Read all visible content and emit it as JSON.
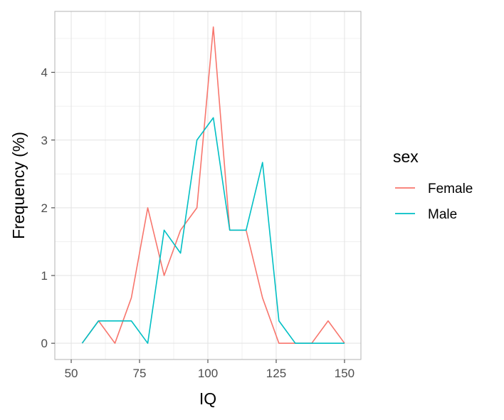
{
  "chart_data": {
    "type": "line",
    "xlabel": "IQ",
    "ylabel": "Frequency (%)",
    "xlim": [
      44,
      156
    ],
    "ylim": [
      -0.24,
      4.9
    ],
    "xticks": [
      50,
      75,
      100,
      125,
      150
    ],
    "yticks": [
      0,
      1,
      2,
      3,
      4
    ],
    "grid": true,
    "legend": {
      "title": "sex",
      "position": "right"
    },
    "x": [
      54,
      60,
      66,
      72,
      78,
      84,
      90,
      96,
      102,
      108,
      114,
      120,
      126,
      132,
      138,
      144,
      150
    ],
    "series": [
      {
        "name": "Female",
        "color": "#f8766d",
        "values": [
          0,
          0.33,
          0,
          0.67,
          2.0,
          1.0,
          1.67,
          2.0,
          4.67,
          1.67,
          1.67,
          0.67,
          0,
          0,
          0,
          0.33,
          0
        ]
      },
      {
        "name": "Male",
        "color": "#00bfc4",
        "values": [
          0,
          0.33,
          0.33,
          0.33,
          0,
          1.67,
          1.33,
          3.0,
          3.33,
          1.67,
          1.67,
          2.67,
          0.33,
          0,
          0,
          0,
          0
        ]
      }
    ]
  }
}
